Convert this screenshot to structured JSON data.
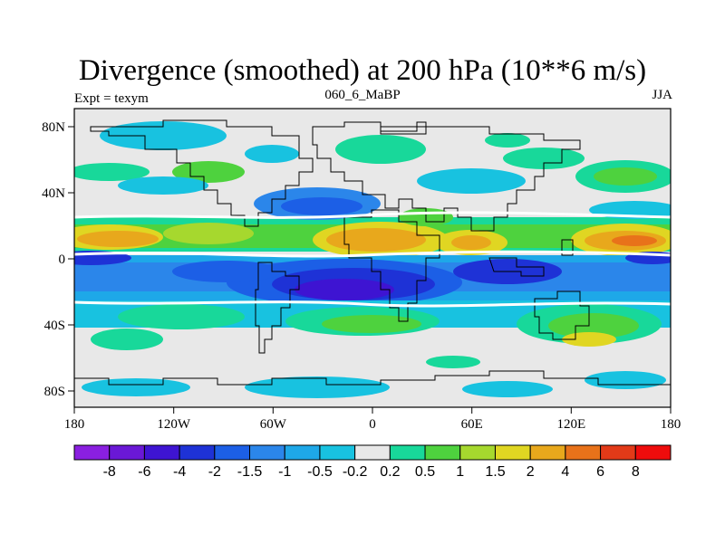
{
  "title": "Divergence (smoothed) at 200 hPa (10**6 m/s)",
  "subtitle_left": "Expt = texym",
  "subtitle_center": "060_6_MaBP",
  "subtitle_right": "JJA",
  "axes": {
    "x_ticks": [
      "180",
      "120W",
      "60W",
      "0",
      "60E",
      "120E",
      "180"
    ],
    "y_ticks": [
      "80N",
      "40N",
      "0",
      "40S",
      "80S"
    ]
  },
  "colorbar": {
    "colors": [
      "#8a1fe0",
      "#6a18d6",
      "#3e14d2",
      "#1e32d6",
      "#1c5fe6",
      "#2b86ea",
      "#1ea8e8",
      "#18c2e0",
      "#e8e8e8",
      "#18d89a",
      "#4ed23e",
      "#a6d82e",
      "#e0d622",
      "#e8a81c",
      "#e8721a",
      "#e23a18",
      "#ee0c0c"
    ],
    "labels": [
      "-8",
      "-6",
      "-4",
      "-2",
      "-1.5",
      "-1",
      "-0.5",
      "-0.2",
      "0.2",
      "0.5",
      "1",
      "1.5",
      "2",
      "4",
      "6",
      "8"
    ]
  }
}
